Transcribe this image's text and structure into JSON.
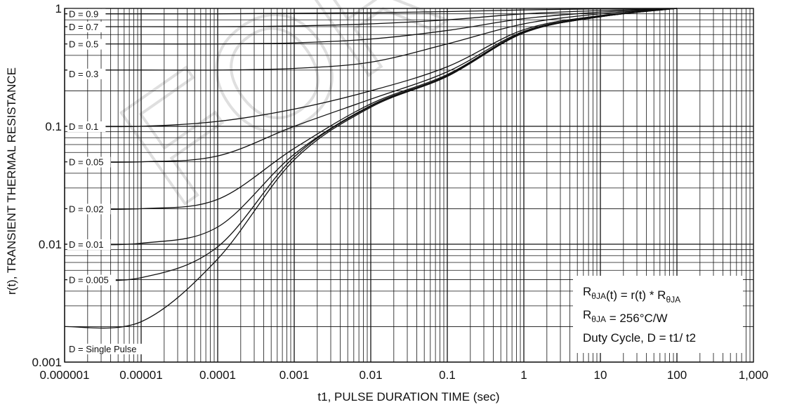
{
  "chart_data": {
    "type": "line",
    "xscale": "log",
    "yscale": "log",
    "xlim": [
      1e-06,
      1000
    ],
    "ylim": [
      0.001,
      1
    ],
    "xlabel": "t1, PULSE DURATION TIME (sec)",
    "ylabel": "r(t), TRANSIENT THERMAL RESISTANCE",
    "grid": true,
    "x_ticks": [
      1e-06,
      1e-05,
      0.0001,
      0.001,
      0.01,
      0.1,
      1,
      10,
      100,
      1000
    ],
    "x_tick_labels": [
      "0.000001",
      "0.00001",
      "0.0001",
      "0.001",
      "0.01",
      "0.1",
      "1",
      "10",
      "100",
      "1,000"
    ],
    "y_ticks": [
      0.001,
      0.01,
      0.1,
      1
    ],
    "y_tick_labels": [
      "0.001",
      "0.01",
      "0.1",
      "1"
    ],
    "series": [
      {
        "name": "D = 0.9",
        "x": [
          1e-06,
          1e-05,
          0.0001,
          0.001,
          0.01,
          0.1,
          1,
          10,
          100
        ],
        "y": [
          0.9,
          0.9,
          0.9,
          0.91,
          0.92,
          0.94,
          0.97,
          0.99,
          1.0
        ]
      },
      {
        "name": "D = 0.7",
        "x": [
          1e-06,
          1e-05,
          0.0001,
          0.001,
          0.01,
          0.1,
          1,
          10,
          100
        ],
        "y": [
          0.7,
          0.7,
          0.7,
          0.71,
          0.74,
          0.8,
          0.9,
          0.96,
          1.0
        ]
      },
      {
        "name": "D = 0.5",
        "x": [
          1e-06,
          1e-05,
          0.0001,
          0.001,
          0.01,
          0.1,
          1,
          10,
          100
        ],
        "y": [
          0.5,
          0.5,
          0.5,
          0.51,
          0.55,
          0.65,
          0.82,
          0.93,
          1.0
        ]
      },
      {
        "name": "D = 0.3",
        "x": [
          1e-06,
          1e-05,
          0.0001,
          0.001,
          0.01,
          0.1,
          1,
          10,
          100
        ],
        "y": [
          0.3,
          0.3,
          0.3,
          0.31,
          0.35,
          0.5,
          0.74,
          0.9,
          1.0
        ]
      },
      {
        "name": "D = 0.1",
        "x": [
          1e-06,
          1e-05,
          0.0001,
          0.001,
          0.01,
          0.1,
          1,
          10,
          100
        ],
        "y": [
          0.1,
          0.1,
          0.11,
          0.14,
          0.2,
          0.32,
          0.66,
          0.87,
          1.0
        ]
      },
      {
        "name": "D = 0.05",
        "x": [
          1e-06,
          1e-05,
          0.0001,
          0.001,
          0.01,
          0.1,
          1,
          10,
          100
        ],
        "y": [
          0.05,
          0.05,
          0.056,
          0.1,
          0.17,
          0.29,
          0.64,
          0.86,
          1.0
        ]
      },
      {
        "name": "D = 0.02",
        "x": [
          1e-06,
          1e-05,
          0.0001,
          0.001,
          0.01,
          0.1,
          1,
          10,
          100
        ],
        "y": [
          0.02,
          0.02,
          0.024,
          0.065,
          0.155,
          0.275,
          0.63,
          0.855,
          1.0
        ]
      },
      {
        "name": "D = 0.01",
        "x": [
          1e-06,
          1e-05,
          0.0001,
          0.001,
          0.01,
          0.1,
          1,
          10,
          100
        ],
        "y": [
          0.01,
          0.0102,
          0.014,
          0.058,
          0.15,
          0.27,
          0.625,
          0.85,
          1.0
        ]
      },
      {
        "name": "D = 0.005",
        "x": [
          1e-06,
          1e-05,
          0.0001,
          0.001,
          0.01,
          0.1,
          1,
          10,
          100
        ],
        "y": [
          0.005,
          0.0052,
          0.0095,
          0.055,
          0.148,
          0.268,
          0.622,
          0.85,
          1.0
        ]
      },
      {
        "name": "D = Single Pulse",
        "x": [
          1e-06,
          1e-05,
          0.0001,
          0.001,
          0.01,
          0.1,
          1,
          10,
          100
        ],
        "y": [
          0.002,
          0.0022,
          0.0075,
          0.052,
          0.145,
          0.265,
          0.62,
          0.85,
          1.0
        ]
      }
    ],
    "curve_labels": [
      "D = 0.9",
      "D = 0.7",
      "D = 0.5",
      "D = 0.3",
      "D = 0.1",
      "D = 0.05",
      "D = 0.02",
      "D = 0.01",
      "D = 0.005",
      "D = Single Pulse"
    ],
    "annotation_box": {
      "lines": [
        {
          "parts": [
            {
              "t": "R"
            },
            {
              "t": "θJA",
              "sub": true
            },
            {
              "t": "(t) = r(t) * R"
            },
            {
              "t": "θJA",
              "sub": true
            }
          ]
        },
        {
          "parts": [
            {
              "t": "R"
            },
            {
              "t": "θJA",
              "sub": true
            },
            {
              "t": " = 256°C/W"
            }
          ]
        },
        {
          "parts": [
            {
              "t": "Duty Cycle, D = t1/ t2"
            }
          ]
        }
      ]
    },
    "watermark_text": "FOR"
  },
  "colors": {
    "line": "#111111",
    "grid": "#111111",
    "watermark": "#dcdcdc"
  }
}
